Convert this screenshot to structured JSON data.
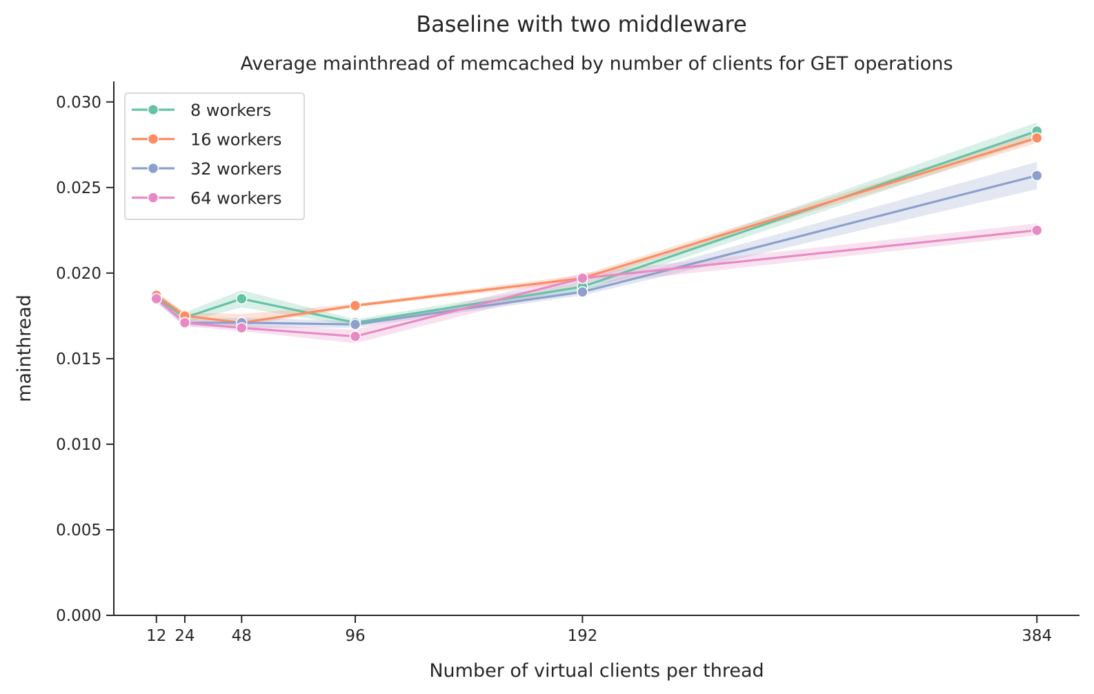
{
  "suptitle": "Baseline with two middleware",
  "chart_data": {
    "type": "line",
    "title": "Average mainthread of memcached by number of clients for GET operations",
    "xlabel": "Number of virtual clients per thread",
    "ylabel": "mainthread",
    "x": [
      12,
      24,
      48,
      96,
      192,
      384
    ],
    "x_tick_labels": [
      "12",
      "24",
      "48",
      "96",
      "192",
      "384"
    ],
    "xlim": [
      -6,
      402
    ],
    "ylim": [
      0,
      0.0312
    ],
    "y_ticks": [
      0.0,
      0.005,
      0.01,
      0.015,
      0.02,
      0.025,
      0.03
    ],
    "y_tick_labels": [
      "0.000",
      "0.005",
      "0.010",
      "0.015",
      "0.020",
      "0.025",
      "0.030"
    ],
    "grid": false,
    "legend_position": "top-left",
    "series": [
      {
        "name": "8 workers",
        "color": "#66c2a5",
        "values": [
          0.0186,
          0.0174,
          0.0185,
          0.0171,
          0.0192,
          0.0283
        ],
        "ci_low": [
          0.0184,
          0.0171,
          0.018,
          0.0169,
          0.0189,
          0.0278
        ],
        "ci_high": [
          0.0188,
          0.0177,
          0.019,
          0.0173,
          0.0195,
          0.0288
        ]
      },
      {
        "name": "16 workers",
        "color": "#fc8d62",
        "values": [
          0.0187,
          0.0175,
          0.0171,
          0.0181,
          0.0197,
          0.0279
        ],
        "ci_low": [
          0.0185,
          0.0173,
          0.0169,
          0.018,
          0.0195,
          0.0276
        ],
        "ci_high": [
          0.0189,
          0.0177,
          0.0176,
          0.0182,
          0.0199,
          0.0282
        ]
      },
      {
        "name": "32 workers",
        "color": "#8da0cb",
        "values": [
          0.0185,
          0.0171,
          0.0171,
          0.017,
          0.0189,
          0.0257
        ],
        "ci_low": [
          0.0183,
          0.0169,
          0.0168,
          0.0168,
          0.0187,
          0.0249
        ],
        "ci_high": [
          0.0187,
          0.0173,
          0.0174,
          0.0172,
          0.0191,
          0.0265
        ]
      },
      {
        "name": "64 workers",
        "color": "#e78ac3",
        "values": [
          0.0185,
          0.0171,
          0.0168,
          0.0163,
          0.0197,
          0.0225
        ],
        "ci_low": [
          0.0183,
          0.0169,
          0.0166,
          0.0159,
          0.0193,
          0.0222
        ],
        "ci_high": [
          0.0187,
          0.0173,
          0.017,
          0.0167,
          0.02,
          0.0229
        ]
      }
    ]
  }
}
